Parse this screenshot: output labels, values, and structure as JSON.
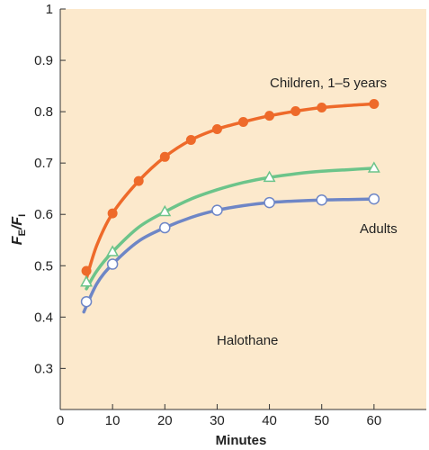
{
  "chart_data": {
    "type": "line",
    "title": "",
    "xlabel": "Minutes",
    "ylabel": {
      "symbol": "F",
      "sub_numerator": "E",
      "sub_denominator": "I"
    },
    "xlim": [
      0,
      70
    ],
    "ylim": [
      0.22,
      1.0
    ],
    "xticks": [
      0,
      10,
      20,
      30,
      40,
      50,
      60
    ],
    "xtick_labels": [
      "0",
      "10",
      "20",
      "30",
      "40",
      "50",
      "60"
    ],
    "yticks": [
      0.3,
      0.4,
      0.5,
      0.6,
      0.7,
      0.8,
      0.9,
      1.0
    ],
    "ytick_labels": [
      "0.3",
      "0.4",
      "0.5",
      "0.6",
      "0.7",
      "0.8",
      "0.9",
      "1"
    ],
    "grid": false,
    "background_color": "#FCE9CC",
    "annotations": [
      {
        "id": "children",
        "text": "Children, 1–5 years"
      },
      {
        "id": "adults",
        "text": "Adults"
      },
      {
        "id": "agent",
        "text": "Halothane"
      }
    ],
    "series": [
      {
        "name": "Children, 1–5 years",
        "color": "#EE6A2A",
        "marker": "filled-circle",
        "x": [
          5,
          10,
          15,
          20,
          25,
          30,
          35,
          40,
          45,
          50,
          60
        ],
        "y": [
          0.49,
          0.602,
          0.665,
          0.712,
          0.745,
          0.766,
          0.78,
          0.792,
          0.801,
          0.808,
          0.815
        ],
        "curve_x": [
          5,
          7,
          10,
          15,
          20,
          25,
          30,
          35,
          40,
          45,
          50,
          55,
          60
        ],
        "curve_y": [
          0.475,
          0.54,
          0.602,
          0.665,
          0.712,
          0.745,
          0.766,
          0.78,
          0.792,
          0.801,
          0.808,
          0.812,
          0.815
        ]
      },
      {
        "name": "",
        "color": "#6CC48A",
        "marker": "open-triangle",
        "x": [
          5,
          10,
          20,
          40,
          60
        ],
        "y": [
          0.468,
          0.527,
          0.605,
          0.672,
          0.69
        ],
        "curve_x": [
          5,
          7,
          10,
          15,
          20,
          25,
          30,
          35,
          40,
          45,
          50,
          55,
          60
        ],
        "curve_y": [
          0.455,
          0.49,
          0.527,
          0.575,
          0.605,
          0.63,
          0.648,
          0.662,
          0.672,
          0.679,
          0.684,
          0.687,
          0.69
        ]
      },
      {
        "name": "Adults",
        "color": "#6E86C6",
        "marker": "open-circle",
        "x": [
          5,
          10,
          20,
          30,
          40,
          50,
          60
        ],
        "y": [
          0.43,
          0.503,
          0.574,
          0.608,
          0.623,
          0.628,
          0.63
        ],
        "curve_x": [
          4.5,
          7,
          10,
          15,
          20,
          25,
          30,
          35,
          40,
          45,
          50,
          55,
          60
        ],
        "curve_y": [
          0.41,
          0.465,
          0.503,
          0.548,
          0.574,
          0.594,
          0.608,
          0.617,
          0.623,
          0.626,
          0.628,
          0.629,
          0.63
        ]
      }
    ]
  }
}
